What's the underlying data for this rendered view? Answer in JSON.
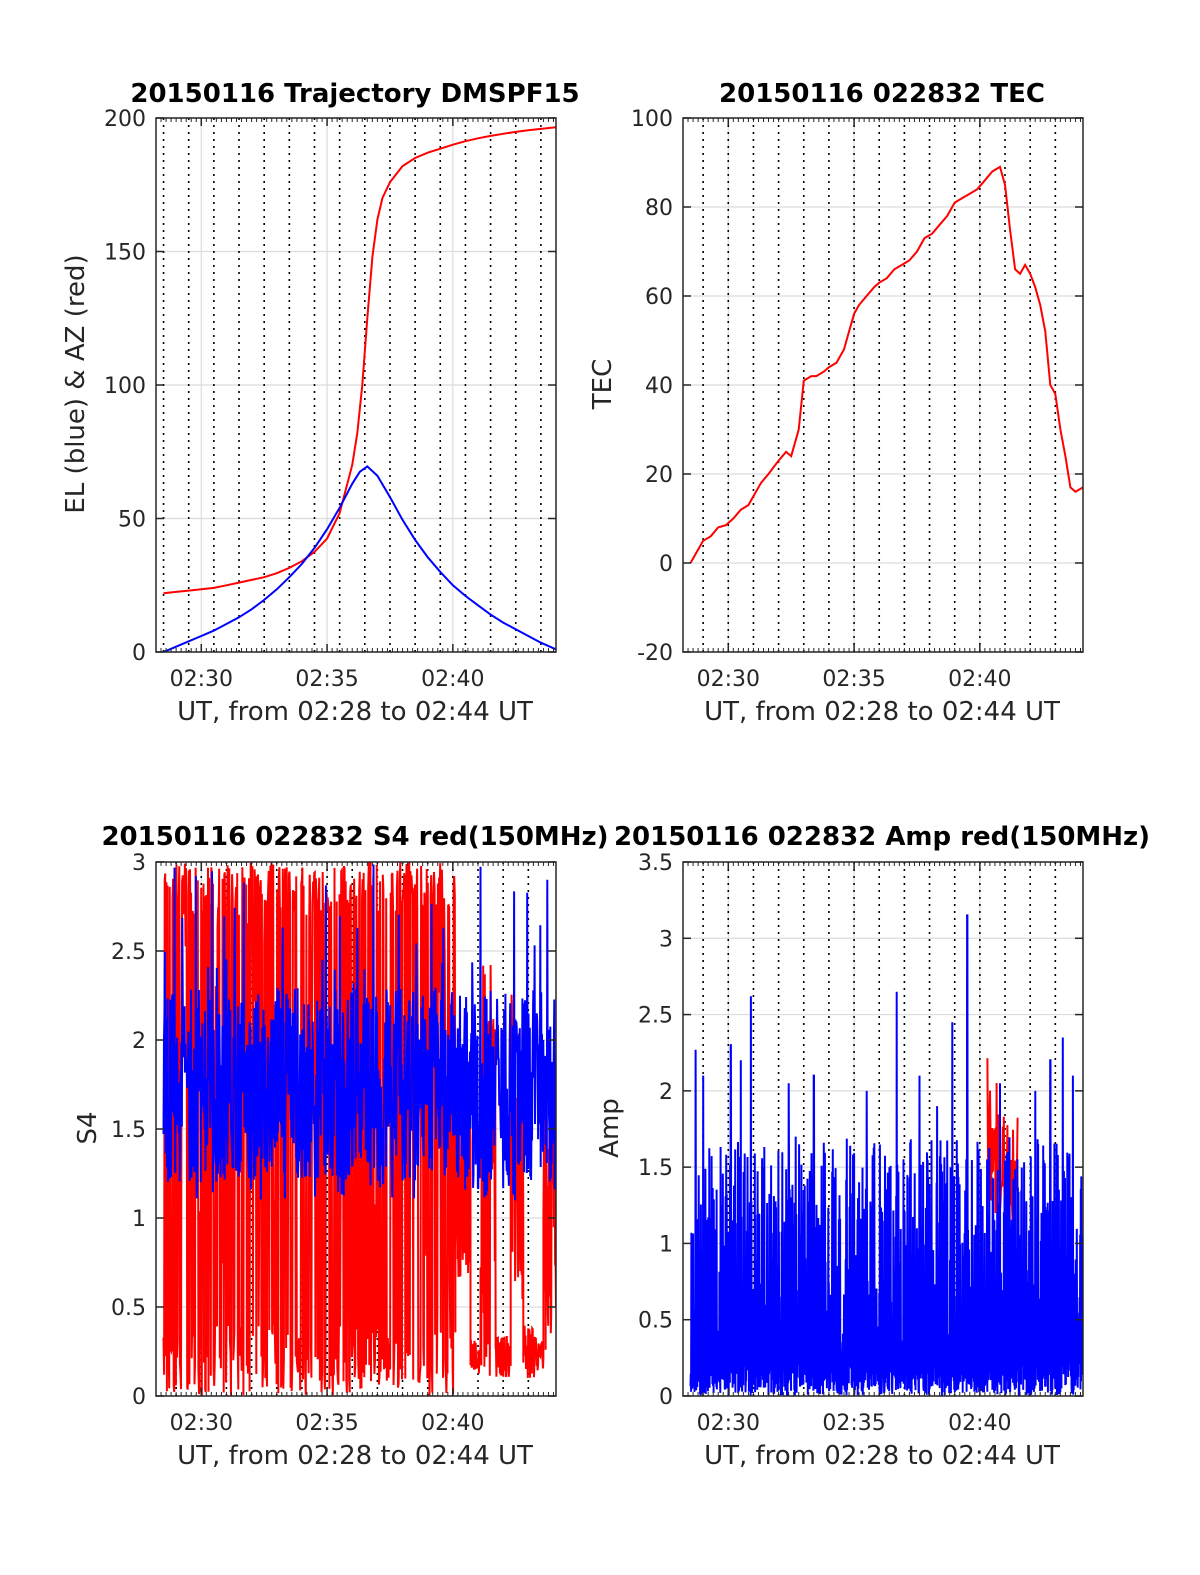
{
  "figure": {
    "common_xlabel": "UT, from 02:28 to 02:44 UT",
    "colors": {
      "red": "#ff0000",
      "blue": "#0000ff",
      "grid": "#dcdcdc",
      "axis": "#262626"
    }
  },
  "chart_data": [
    {
      "type": "line",
      "title": "20150116 Trajectory DMSPF15",
      "xlabel": "UT, from 02:28 to 02:44 UT",
      "ylabel": "EL (blue) & AZ (red)",
      "x_unit": "minutes after 02:00 UT",
      "xlim": [
        28.2,
        44.1
      ],
      "ylim": [
        0,
        200
      ],
      "yticks": [
        0,
        50,
        100,
        150,
        200
      ],
      "xticks": [
        30,
        35,
        40
      ],
      "xtick_labels": [
        "02:30",
        "02:35",
        "02:40"
      ],
      "vlines": [
        28.5,
        29.5,
        30.5,
        31.5,
        32.5,
        33.5,
        34.5,
        35.5,
        36.5,
        37.5,
        38.5,
        39.5,
        40.5,
        41.5,
        42.5,
        43.5
      ],
      "grid": true,
      "series": [
        {
          "color": "red",
          "x": [
            28.5,
            29,
            29.5,
            30,
            30.5,
            31,
            31.5,
            32,
            32.5,
            33,
            33.5,
            34,
            34.5,
            35,
            35.5,
            36,
            36.2,
            36.4,
            36.6,
            36.8,
            37,
            37.2,
            37.5,
            38,
            38.5,
            39,
            39.5,
            40,
            40.5,
            41,
            41.5,
            42,
            42.5,
            43,
            43.5,
            44.1
          ],
          "y": [
            22,
            22.5,
            23,
            23.5,
            24,
            25,
            26,
            27,
            28,
            29.5,
            31.5,
            34,
            37.5,
            42.5,
            52,
            70,
            82,
            100,
            125,
            148,
            162,
            170,
            176,
            182,
            185,
            187,
            188.5,
            190,
            191.3,
            192.4,
            193.3,
            194.1,
            194.8,
            195.4,
            195.9,
            196.5
          ]
        },
        {
          "color": "blue",
          "x": [
            28.5,
            29,
            29.5,
            30,
            30.5,
            31,
            31.5,
            32,
            32.5,
            33,
            33.5,
            34,
            34.5,
            35,
            35.5,
            36,
            36.3,
            36.6,
            37,
            37.5,
            38,
            38.5,
            39,
            39.5,
            40,
            40.5,
            41,
            41.5,
            42,
            42.5,
            43,
            43.5,
            44.1
          ],
          "y": [
            0,
            2,
            4,
            6,
            8,
            10.5,
            13,
            16,
            19.5,
            23.5,
            28,
            33,
            39,
            46,
            54,
            63,
            67.5,
            69.5,
            66,
            58,
            49.5,
            42,
            35.5,
            30,
            25,
            21,
            17.5,
            14,
            11,
            8.5,
            6,
            3.5,
            1
          ]
        }
      ]
    },
    {
      "type": "line",
      "title": "20150116 022832 TEC",
      "xlabel": "UT, from 02:28 to 02:44 UT",
      "ylabel": "TEC",
      "x_unit": "minutes after 02:00 UT",
      "xlim": [
        28.2,
        44.1
      ],
      "ylim": [
        -20,
        100
      ],
      "yticks": [
        -20,
        0,
        20,
        40,
        60,
        80,
        100
      ],
      "xticks": [
        30,
        35,
        40
      ],
      "xtick_labels": [
        "02:30",
        "02:35",
        "02:40"
      ],
      "vlines": [
        29,
        30,
        31,
        32,
        33,
        34,
        35,
        36,
        37,
        38,
        39,
        40,
        41,
        42,
        43
      ],
      "grid": true,
      "series": [
        {
          "color": "red",
          "x": [
            28.5,
            28.8,
            29,
            29.3,
            29.6,
            29.9,
            30.2,
            30.5,
            30.8,
            31,
            31.3,
            31.6,
            32,
            32.3,
            32.5,
            32.8,
            33,
            33.3,
            33.5,
            33.8,
            34,
            34.3,
            34.6,
            34.8,
            35,
            35.2,
            35.5,
            35.8,
            36,
            36.3,
            36.6,
            36.9,
            37.2,
            37.5,
            37.8,
            38.1,
            38.4,
            38.7,
            39,
            39.3,
            39.6,
            39.9,
            40.2,
            40.5,
            40.8,
            41,
            41.2,
            41.4,
            41.6,
            41.8,
            42,
            42.2,
            42.4,
            42.6,
            42.8,
            43,
            43.2,
            43.4,
            43.6,
            43.8,
            44.1
          ],
          "y": [
            0,
            3,
            5,
            6,
            8,
            8.5,
            10,
            12,
            13,
            15,
            18,
            20,
            23,
            25,
            24,
            30,
            41,
            42,
            42,
            43,
            44,
            45,
            48,
            52,
            56,
            58,
            60,
            62,
            63,
            64,
            66,
            67,
            68,
            70,
            73,
            74,
            76,
            78,
            81,
            82,
            83,
            84,
            86,
            88,
            89,
            85,
            75,
            66,
            65,
            67,
            65,
            62,
            58,
            52,
            40,
            38,
            30,
            24,
            17,
            16,
            17
          ]
        }
      ]
    },
    {
      "type": "line",
      "title": "20150116 022832 S4 red(150MHz)",
      "xlabel": "UT, from 02:28 to 02:44 UT",
      "ylabel": "S4",
      "x_unit": "minutes after 02:00 UT",
      "xlim": [
        28.2,
        44.1
      ],
      "ylim": [
        0,
        3
      ],
      "yticks": [
        0,
        0.5,
        1,
        1.5,
        2,
        2.5,
        3
      ],
      "ytick_labels": [
        "0",
        "0.5",
        "1",
        "1.5",
        "2",
        "2.5",
        "3"
      ],
      "xticks": [
        30,
        35,
        40
      ],
      "xtick_labels": [
        "02:30",
        "02:35",
        "02:40"
      ],
      "vlines": [
        29,
        30,
        31,
        32,
        33,
        34,
        35,
        36,
        37,
        38,
        39,
        40,
        41,
        42,
        43
      ],
      "grid": true,
      "noise": [
        {
          "color": "red",
          "seed": 17,
          "segments": [
            {
              "x0": 28.5,
              "x1": 40.1,
              "n": 520,
              "kind": "fullband",
              "lo": 0,
              "hi": 3
            },
            {
              "x0": 40.1,
              "x1": 40.7,
              "n": 40,
              "kind": "mix",
              "base": 1.2,
              "spread": 0.6
            },
            {
              "x0": 40.7,
              "x1": 41.1,
              "n": 26,
              "kind": "low",
              "base": 0.22,
              "spread": 0.1
            },
            {
              "x0": 41.1,
              "x1": 41.7,
              "n": 40,
              "kind": "mix",
              "base": 1.3,
              "spread": 1.2
            },
            {
              "x0": 41.7,
              "x1": 42.3,
              "n": 40,
              "kind": "low",
              "base": 0.22,
              "spread": 0.12
            },
            {
              "x0": 42.3,
              "x1": 42.8,
              "n": 30,
              "kind": "mix",
              "base": 1.4,
              "spread": 0.9
            },
            {
              "x0": 42.8,
              "x1": 43.6,
              "n": 46,
              "kind": "low",
              "base": 0.25,
              "spread": 0.15
            },
            {
              "x0": 43.6,
              "x1": 44.1,
              "n": 30,
              "kind": "mix",
              "base": 1.0,
              "spread": 0.8
            }
          ]
        },
        {
          "color": "blue",
          "seed": 29,
          "segments": [
            {
              "x0": 28.5,
              "x1": 44.1,
              "n": 900,
              "kind": "mix",
              "base": 1.75,
              "spread": 0.55,
              "spike": 3.0,
              "floor": 1.1
            }
          ]
        }
      ]
    },
    {
      "type": "line",
      "title": "20150116 022832 Amp red(150MHz)",
      "xlabel": "UT, from 02:28 to 02:44 UT",
      "ylabel": "Amp",
      "x_unit": "minutes after 02:00 UT",
      "xlim": [
        28.2,
        44.1
      ],
      "ylim": [
        0,
        3.5
      ],
      "yticks": [
        0,
        0.5,
        1,
        1.5,
        2,
        2.5,
        3,
        3.5
      ],
      "ytick_labels": [
        "0",
        "0.5",
        "1",
        "1.5",
        "2",
        "2.5",
        "3",
        "3.5"
      ],
      "xticks": [
        30,
        35,
        40
      ],
      "xtick_labels": [
        "02:30",
        "02:35",
        "02:40"
      ],
      "vlines": [
        29,
        30,
        31,
        32,
        33,
        34,
        35,
        36,
        37,
        38,
        39,
        40,
        41,
        42,
        43
      ],
      "grid": true,
      "noise": [
        {
          "color": "red",
          "seed": 41,
          "segments": [
            {
              "x0": 40.3,
              "x1": 41.5,
              "n": 60,
              "kind": "mix",
              "base": 1.5,
              "spread": 0.35,
              "spike": 2.3,
              "floor": 1.1
            }
          ]
        },
        {
          "color": "blue",
          "seed": 53,
          "segments": [
            {
              "x0": 28.5,
              "x1": 44.1,
              "n": 1400,
              "kind": "amp",
              "lo": 0,
              "hi": 1.7,
              "peaks": [
                [
                  28.7,
                  2.27
                ],
                [
                  29.0,
                  2.1
                ],
                [
                  30.1,
                  2.3
                ],
                [
                  30.5,
                  2.2
                ],
                [
                  30.9,
                  2.62
                ],
                [
                  32.4,
                  2.05
                ],
                [
                  33.4,
                  2.1
                ],
                [
                  35.5,
                  2.0
                ],
                [
                  36.7,
                  2.65
                ],
                [
                  37.6,
                  2.1
                ],
                [
                  38.3,
                  1.9
                ],
                [
                  38.9,
                  2.45
                ],
                [
                  39.5,
                  3.15
                ],
                [
                  40.8,
                  2.05
                ],
                [
                  42.2,
                  2.0
                ],
                [
                  42.8,
                  2.2
                ],
                [
                  43.3,
                  2.35
                ],
                [
                  43.7,
                  2.1
                ]
              ]
            }
          ]
        }
      ]
    }
  ]
}
